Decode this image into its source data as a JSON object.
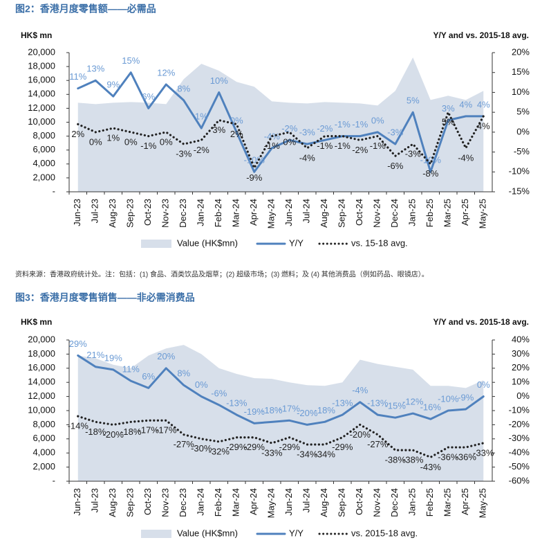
{
  "chart_data": [
    {
      "type": "combo",
      "title": "图2：香港月度零售额——必需品",
      "y_label": "HK$ mn",
      "y2_label": "Y/Y and vs. 2015-18 avg.",
      "categories": [
        "Jun-23",
        "Jul-23",
        "Aug-23",
        "Sep-23",
        "Oct-23",
        "Nov-23",
        "Dec-23",
        "Jan-24",
        "Feb-24",
        "Mar-24",
        "Apr-24",
        "May-24",
        "Jun-24",
        "Jul-24",
        "Aug-24",
        "Sep-24",
        "Oct-24",
        "Nov-24",
        "Dec-24",
        "Jan-25",
        "Feb-25",
        "Mar-25",
        "Apr-25",
        "May-25"
      ],
      "ylim": [
        0,
        20000
      ],
      "yticks": [
        {
          "value": 0,
          "label": "-"
        },
        {
          "value": 2000,
          "label": "2,000"
        },
        {
          "value": 4000,
          "label": "4,000"
        },
        {
          "value": 6000,
          "label": "6,000"
        },
        {
          "value": 8000,
          "label": "8,000"
        },
        {
          "value": 10000,
          "label": "10,000"
        },
        {
          "value": 12000,
          "label": "12,000"
        },
        {
          "value": 14000,
          "label": "14,000"
        },
        {
          "value": 16000,
          "label": "16,000"
        },
        {
          "value": 18000,
          "label": "18,000"
        },
        {
          "value": 20000,
          "label": "20,000"
        }
      ],
      "y2lim": [
        -15,
        20
      ],
      "y2ticks": [
        {
          "value": -15,
          "label": "-15%"
        },
        {
          "value": -10,
          "label": "-10%"
        },
        {
          "value": -5,
          "label": "-5%"
        },
        {
          "value": 0,
          "label": "0%"
        },
        {
          "value": 5,
          "label": "5%"
        },
        {
          "value": 10,
          "label": "10%"
        },
        {
          "value": 15,
          "label": "15%"
        },
        {
          "value": 20,
          "label": "20%"
        }
      ],
      "series": [
        {
          "name": "Value (HK$mn)",
          "kind": "area",
          "color": "#d7dfea",
          "values": [
            12800,
            12600,
            12800,
            12900,
            12800,
            12600,
            16200,
            18400,
            17400,
            15800,
            15100,
            13000,
            12800,
            12700,
            12900,
            12800,
            12700,
            12400,
            14500,
            19300,
            13200,
            13800,
            13200,
            14500
          ]
        },
        {
          "name": "Y/Y",
          "kind": "line",
          "axis": "y2",
          "color": "#4f81bd",
          "label_color": "#6a9ad4",
          "values": [
            11,
            13,
            9,
            15,
            6,
            12,
            8,
            1,
            10,
            0,
            -10,
            -4,
            -2,
            -3,
            -2,
            -1,
            -1,
            0,
            -3,
            5,
            -10,
            3,
            4,
            4
          ],
          "value_labels": [
            "11%",
            "13%",
            "9%",
            "15%",
            "6%",
            "12%",
            "8%",
            "1%",
            "10%",
            "0%",
            "-10%",
            "-4%",
            "-2%",
            "-3%",
            "-2%",
            "-1%",
            "-1%",
            "0%",
            "-3%",
            "5%",
            "-10%",
            "3%",
            "4%",
            "4%"
          ]
        },
        {
          "name": "vs. 15-18 avg.",
          "kind": "dotted",
          "axis": "y2",
          "color": "#222222",
          "label_color": "#222222",
          "values": [
            2,
            0,
            1,
            0,
            -1,
            0,
            -3,
            -2,
            3,
            2,
            -9,
            -1,
            0,
            -4,
            -1,
            -1,
            -2,
            -1,
            -6,
            -3,
            -8,
            5,
            -4,
            4
          ],
          "value_labels": [
            "2%",
            "0%",
            "1%",
            "0%",
            "-1%",
            "0%",
            "-3%",
            "-2%",
            "3%",
            "2%",
            "-9%",
            "-1%",
            "0%",
            "-4%",
            "-1%",
            "-1%",
            "-2%",
            "-1%",
            "-6%",
            "-3%",
            "-8%",
            "5%",
            "-4%",
            "4%"
          ]
        }
      ]
    },
    {
      "type": "combo",
      "title": "图3：香港月度零售销售——非必需消费品",
      "y_label": "HK$ mn",
      "y2_label": "Y/Y and vs. 2015-18 avg.",
      "categories": [
        "Jun-23",
        "Jul-23",
        "Aug-23",
        "Sep-23",
        "Oct-23",
        "Nov-23",
        "Dec-23",
        "Jan-24",
        "Feb-24",
        "Mar-24",
        "Apr-24",
        "May-24",
        "Jun-24",
        "Jul-24",
        "Aug-24",
        "Sep-24",
        "Oct-24",
        "Nov-24",
        "Dec-24",
        "Jan-25",
        "Feb-25",
        "Mar-25",
        "Apr-25",
        "May-25"
      ],
      "ylim": [
        0,
        20000
      ],
      "yticks": [
        {
          "value": 0,
          "label": "-"
        },
        {
          "value": 2000,
          "label": "2,000"
        },
        {
          "value": 4000,
          "label": "4,000"
        },
        {
          "value": 6000,
          "label": "6,000"
        },
        {
          "value": 8000,
          "label": "8,000"
        },
        {
          "value": 10000,
          "label": "10,000"
        },
        {
          "value": 12000,
          "label": "12,000"
        },
        {
          "value": 14000,
          "label": "14,000"
        },
        {
          "value": 16000,
          "label": "16,000"
        },
        {
          "value": 18000,
          "label": "18,000"
        },
        {
          "value": 20000,
          "label": "20,000"
        }
      ],
      "y2lim": [
        -60,
        40
      ],
      "y2ticks": [
        {
          "value": -60,
          "label": "-60%"
        },
        {
          "value": -50,
          "label": "-50%"
        },
        {
          "value": -40,
          "label": "-40%"
        },
        {
          "value": -30,
          "label": "-30%"
        },
        {
          "value": -20,
          "label": "-20%"
        },
        {
          "value": -10,
          "label": "-10%"
        },
        {
          "value": 0,
          "label": "0%"
        },
        {
          "value": 10,
          "label": "10%"
        },
        {
          "value": 20,
          "label": "20%"
        },
        {
          "value": 30,
          "label": "30%"
        },
        {
          "value": 40,
          "label": "40%"
        }
      ],
      "series": [
        {
          "name": "Value (HK$mn)",
          "kind": "area",
          "color": "#d7dfea",
          "values": [
            17800,
            17400,
            16500,
            16000,
            17800,
            18800,
            19300,
            18000,
            16000,
            15200,
            14600,
            14500,
            14000,
            13600,
            13500,
            14000,
            17200,
            16600,
            16200,
            15800,
            13500,
            13500,
            13200,
            14300
          ]
        },
        {
          "name": "Y/Y",
          "kind": "line",
          "axis": "y2",
          "color": "#4f81bd",
          "label_color": "#6a9ad4",
          "values": [
            29,
            21,
            19,
            11,
            6,
            20,
            8,
            0,
            -6,
            -13,
            -19,
            -18,
            -17,
            -20,
            -18,
            -13,
            -4,
            -13,
            -15,
            -12,
            -16,
            -10,
            -9,
            0
          ],
          "value_labels": [
            "29%",
            "21%",
            "19%",
            "11%",
            "6%",
            "20%",
            "8%",
            "0%",
            "-6%",
            "-13%",
            "-19%",
            "-18%",
            "-17%",
            "-20%",
            "-18%",
            "-13%",
            "-4%",
            "-13%",
            "-15%",
            "-12%",
            "-16%",
            "-10%",
            "-9%",
            "0%"
          ]
        },
        {
          "name": "vs. 2015-18 avg.",
          "kind": "dotted",
          "axis": "y2",
          "color": "#222222",
          "label_color": "#222222",
          "values": [
            -14,
            -18,
            -20,
            -18,
            -17,
            -17,
            -27,
            -30,
            -32,
            -29,
            -29,
            -33,
            -29,
            -34,
            -34,
            -29,
            -20,
            -27,
            -38,
            -38,
            -43,
            -36,
            -36,
            -33
          ],
          "value_labels": [
            "-14%",
            "-18%",
            "-20%",
            "-18%",
            "-17%",
            "-17%",
            "-27%",
            "-30%",
            "-32%",
            "-29%",
            "-29%",
            "-33%",
            "-29%",
            "-34%",
            "-34%",
            "-29%",
            "-20%",
            "-27%",
            "-38%",
            "-38%",
            "-43%",
            "-36%",
            "-36%",
            "-33%"
          ]
        }
      ]
    }
  ],
  "source_note": "资料来源：香港政府统计处。注：包括：(1) 食品、酒类饮品及烟草；(2) 超级市场；(3) 燃料；及 (4) 其他消费品（例如药品、眼镜店）。"
}
